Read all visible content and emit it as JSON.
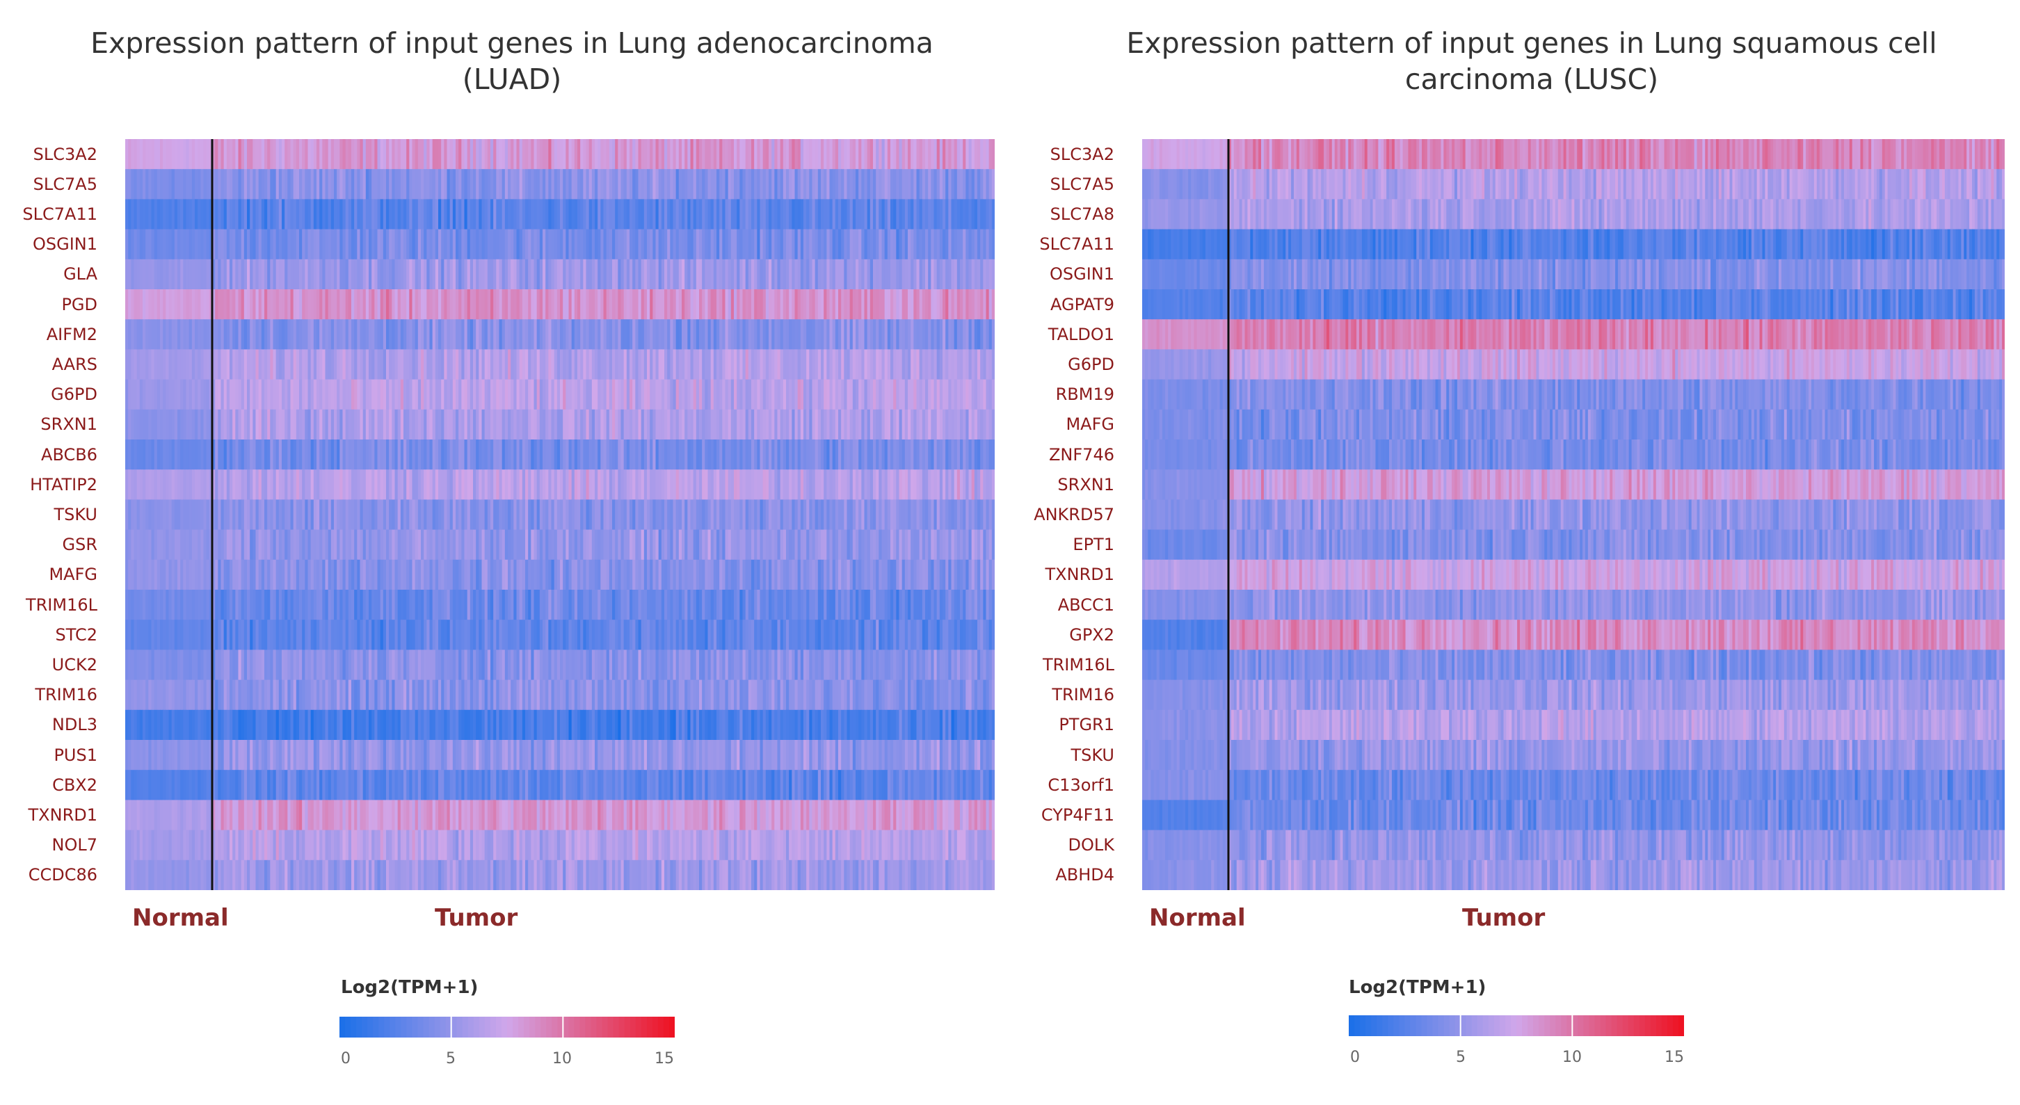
{
  "colors": {
    "low": "#1a6fe8",
    "mid": "#d0a7ea",
    "high": "#ee1020",
    "label": "#8b1a1a",
    "separator": "#111111"
  },
  "chart_data": [
    {
      "type": "heatmap",
      "title_lines": [
        "Expression pattern of input genes in Lung adenocarcinoma",
        "(LUAD)"
      ],
      "genes": [
        "SLC3A2",
        "SLC7A5",
        "SLC7A11",
        "OSGIN1",
        "GLA",
        "PGD",
        "AIFM2",
        "AARS",
        "G6PD",
        "SRXN1",
        "ABCB6",
        "HTATIP2",
        "TSKU",
        "GSR",
        "MAFG",
        "TRIM16L",
        "STC2",
        "UCK2",
        "TRIM16",
        "NDL3",
        "PUS1",
        "CBX2",
        "TXNRD1",
        "NOL7",
        "CCDC86"
      ],
      "groups": [
        {
          "name": "Normal",
          "n_columns": 30
        },
        {
          "name": "Tumor",
          "n_columns": 270
        }
      ],
      "normal_mean": [
        7.6,
        4.0,
        2.2,
        3.4,
        5.0,
        7.9,
        4.6,
        5.6,
        5.3,
        4.6,
        3.3,
        6.2,
        4.6,
        4.9,
        4.9,
        3.6,
        3.0,
        4.2,
        4.9,
        1.8,
        4.6,
        2.4,
        6.0,
        5.6,
        5.1
      ],
      "tumor_mean": [
        8.2,
        4.6,
        2.6,
        3.9,
        5.4,
        8.6,
        4.4,
        6.4,
        6.6,
        6.1,
        3.9,
        6.6,
        4.6,
        5.0,
        4.4,
        3.3,
        2.9,
        4.6,
        4.6,
        1.9,
        5.0,
        2.9,
        8.3,
        6.4,
        5.4
      ],
      "legend": {
        "title": "Log2(TPM+1)",
        "ticks": [
          "0",
          "5",
          "10",
          "15"
        ],
        "range": [
          0,
          15
        ]
      }
    },
    {
      "type": "heatmap",
      "title_lines": [
        "Expression pattern of input genes in Lung squamous cell",
        "carcinoma (LUSC)"
      ],
      "genes": [
        "SLC3A2",
        "SLC7A5",
        "SLC7A8",
        "SLC7A11",
        "OSGIN1",
        "AGPAT9",
        "TALDO1",
        "G6PD",
        "RBM19",
        "MAFG",
        "ZNF746",
        "SRXN1",
        "ANKRD57",
        "EPT1",
        "TXNRD1",
        "ABCC1",
        "GPX2",
        "TRIM16L",
        "TRIM16",
        "PTGR1",
        "TSKU",
        "C13orf1",
        "CYP4F11",
        "DOLK",
        "ABHD4"
      ],
      "groups": [
        {
          "name": "Normal",
          "n_columns": 30
        },
        {
          "name": "Tumor",
          "n_columns": 285
        }
      ],
      "normal_mean": [
        7.6,
        4.4,
        5.0,
        1.8,
        3.4,
        2.4,
        8.6,
        5.1,
        4.1,
        4.1,
        3.9,
        4.4,
        4.4,
        3.4,
        6.4,
        4.4,
        2.4,
        3.4,
        4.4,
        4.6,
        4.4,
        4.4,
        2.4,
        4.4,
        4.6
      ],
      "tumor_mean": [
        9.2,
        6.4,
        6.0,
        2.4,
        4.4,
        2.6,
        9.4,
        7.4,
        4.2,
        4.1,
        3.9,
        8.0,
        4.9,
        4.4,
        7.6,
        4.9,
        9.0,
        4.1,
        5.4,
        6.4,
        5.0,
        3.4,
        3.4,
        4.9,
        5.4
      ],
      "legend": {
        "title": "Log2(TPM+1)",
        "ticks": [
          "0",
          "5",
          "10",
          "15"
        ],
        "range": [
          0,
          15
        ]
      }
    }
  ]
}
